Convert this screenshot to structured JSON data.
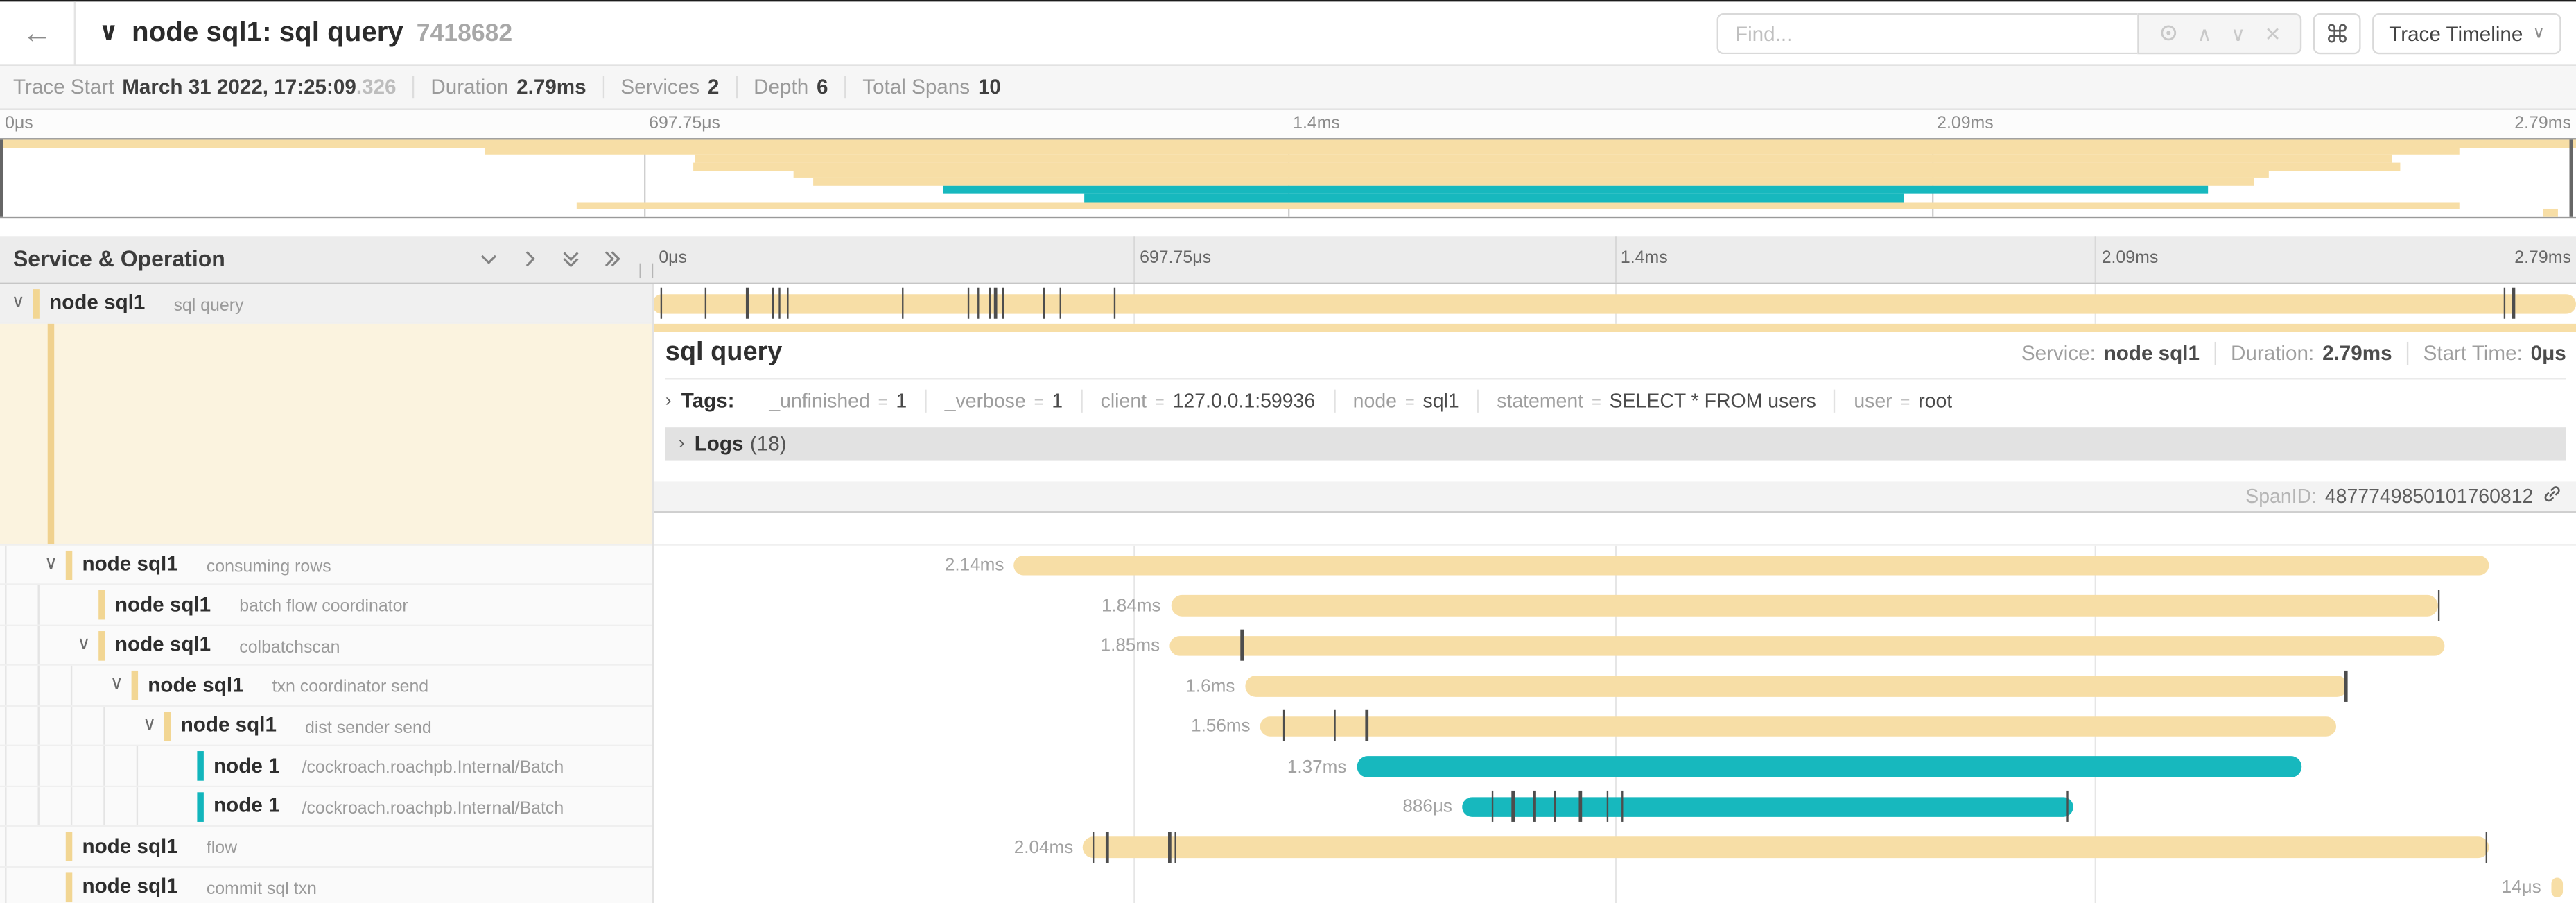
{
  "colors": {
    "tan": "#F7DEA6",
    "teal": "#17B8BE",
    "tree_tan": "#F2D693",
    "tree_teal": "#12B5BC"
  },
  "header": {
    "back_icon": "←",
    "collapse_icon": "∨",
    "title": "node sql1: sql query",
    "trace_id": "7418682",
    "find_placeholder": "Find...",
    "shortcut_icon": "⌘",
    "view_dropdown_label": "Trace Timeline",
    "view_dropdown_caret": "∨"
  },
  "trace_meta": {
    "items": [
      {
        "label": "Trace Start",
        "value": "March 31 2022, 17:25:09",
        "suffix": ".326"
      },
      {
        "label": "Duration",
        "value": "2.79ms",
        "suffix": ""
      },
      {
        "label": "Services",
        "value": "2",
        "suffix": ""
      },
      {
        "label": "Depth",
        "value": "6",
        "suffix": ""
      },
      {
        "label": "Total Spans",
        "value": "10",
        "suffix": ""
      }
    ]
  },
  "ruler_ticks": [
    "0μs",
    "697.75μs",
    "1.4ms",
    "2.09ms",
    "2.79ms"
  ],
  "section_header": {
    "title": "Service & Operation"
  },
  "spans": [
    {
      "service": "node sql1",
      "operation": "sql query",
      "indent": 0,
      "color": "tan",
      "chevron": true,
      "bar": {
        "start": 0,
        "width": 100,
        "label": "",
        "ticks": [
          0.4,
          2.7,
          4.9,
          6.2,
          6.6,
          7.0,
          13.0,
          16.4,
          16.9,
          17.5,
          17.8,
          18.2,
          20.3,
          21.2,
          24.0,
          96.2,
          96.7
        ]
      }
    },
    {
      "service": "node sql1",
      "operation": "consuming rows",
      "indent": 1,
      "color": "tan",
      "chevron": true,
      "bar": {
        "start": 18.8,
        "width": 76.7,
        "label": "2.14ms",
        "ticks": []
      }
    },
    {
      "service": "node sql1",
      "operation": "batch flow coordinator",
      "indent": 2,
      "color": "tan",
      "chevron": false,
      "bar": {
        "start": 26.95,
        "width": 65.9,
        "label": "1.84ms",
        "ticks": [
          92.8
        ]
      }
    },
    {
      "service": "node sql1",
      "operation": "colbatchscan",
      "indent": 2,
      "color": "tan",
      "chevron": true,
      "bar": {
        "start": 26.9,
        "width": 66.3,
        "label": "1.85ms",
        "ticks": [
          30.6
        ]
      }
    },
    {
      "service": "node sql1",
      "operation": "txn coordinator send",
      "indent": 3,
      "color": "tan",
      "chevron": true,
      "bar": {
        "start": 30.8,
        "width": 57.3,
        "label": "1.6ms",
        "ticks": [
          88.0
        ]
      }
    },
    {
      "service": "node sql1",
      "operation": "dist sender send",
      "indent": 4,
      "color": "tan",
      "chevron": true,
      "bar": {
        "start": 31.6,
        "width": 55.9,
        "label": "1.56ms",
        "ticks": [
          32.8,
          35.4,
          37.1
        ]
      }
    },
    {
      "service": "node 1",
      "operation": "/cockroach.roachpb.Internal/Batch",
      "indent": 5,
      "color": "teal",
      "chevron": false,
      "bar": {
        "start": 36.6,
        "width": 49.1,
        "label": "1.37ms",
        "ticks": []
      }
    },
    {
      "service": "node 1",
      "operation": "/cockroach.roachpb.Internal/Batch",
      "indent": 5,
      "color": "teal",
      "chevron": false,
      "bar": {
        "start": 42.1,
        "width": 31.8,
        "label": "886μs",
        "ticks": [
          43.6,
          44.7,
          45.8,
          46.9,
          48.2,
          49.6,
          50.4,
          73.5
        ]
      }
    },
    {
      "service": "node sql1",
      "operation": "flow",
      "indent": 1,
      "color": "tan",
      "chevron": false,
      "bar": {
        "start": 22.4,
        "width": 73.1,
        "label": "2.04ms",
        "ticks": [
          22.9,
          23.6,
          26.85,
          27.15,
          95.3
        ]
      }
    },
    {
      "service": "node sql1",
      "operation": "commit sql txn",
      "indent": 1,
      "color": "tan",
      "chevron": false,
      "bar": {
        "start": 98.7,
        "width": 0.6,
        "label": "14μs",
        "ticks": []
      }
    }
  ],
  "detail": {
    "title": "sql query",
    "service_label": "Service:",
    "service": "node sql1",
    "duration_label": "Duration:",
    "duration": "2.79ms",
    "start_label": "Start Time:",
    "start": "0μs",
    "tags_label": "Tags:",
    "tags": [
      {
        "key": "_unfinished",
        "value": "1"
      },
      {
        "key": "_verbose",
        "value": "1"
      },
      {
        "key": "client",
        "value": "127.0.0.1:59936"
      },
      {
        "key": "node",
        "value": "sql1"
      },
      {
        "key": "statement",
        "value": "SELECT * FROM users"
      },
      {
        "key": "user",
        "value": "root"
      }
    ],
    "logs_label": "Logs",
    "logs_count": "(18)",
    "span_id_label": "SpanID:",
    "span_id": "4877749850101760812"
  }
}
